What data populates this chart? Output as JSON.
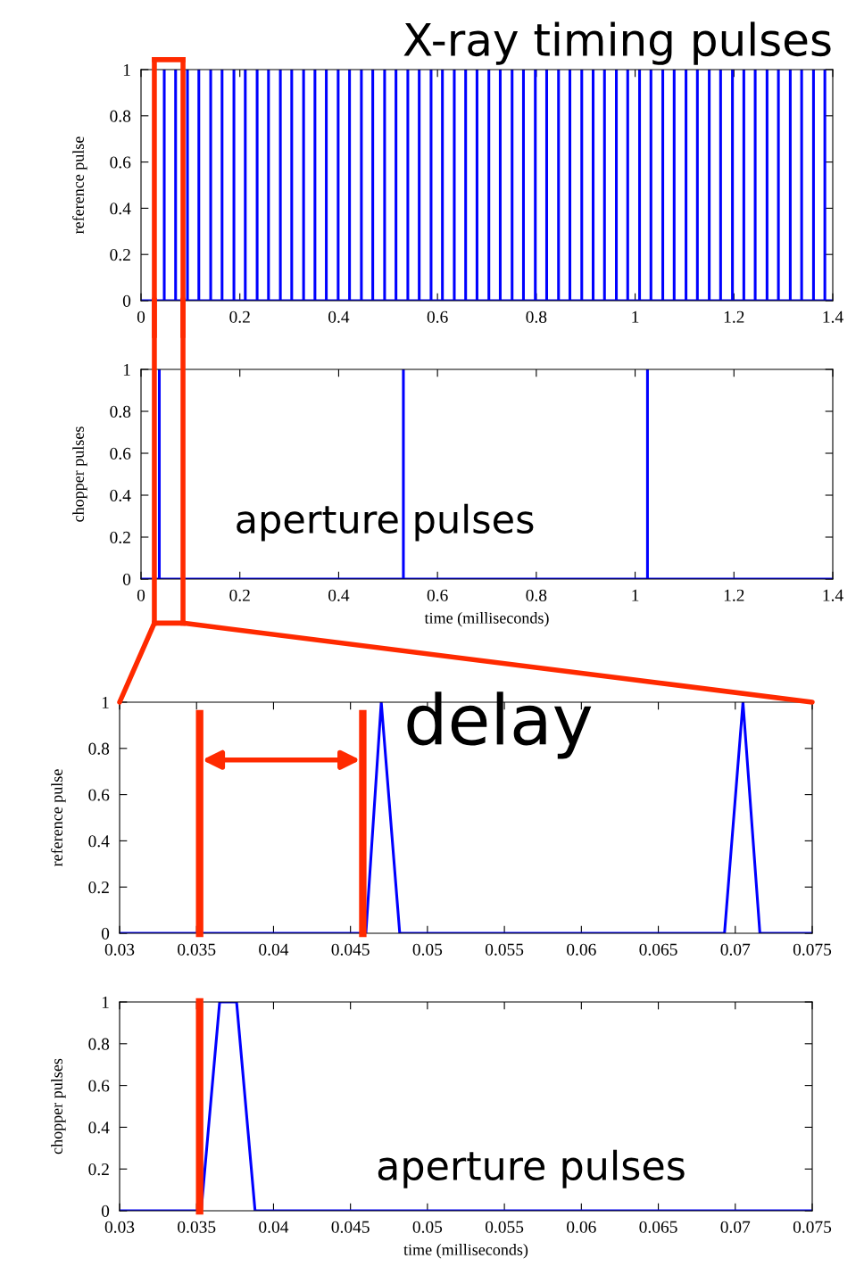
{
  "chart_data": [
    {
      "type": "line",
      "title": "X-ray timing pulses",
      "ylabel": "reference pulse",
      "ref_lines": [
        {
          "axis": "x",
          "value": 0.027,
          "color": "#ff2a00"
        },
        {
          "axis": "x",
          "value": 0.085,
          "color": "#ff2a00"
        }
      ],
      "xlim": [
        0,
        1.4
      ],
      "xticks": [
        0,
        0.2,
        0.4,
        0.6,
        0.8,
        1,
        1.2,
        1.4
      ],
      "ylim": [
        0,
        1
      ],
      "yticks": [
        0,
        0.2,
        0.4,
        0.6,
        0.8,
        1
      ],
      "series": [
        {
          "color": "#0000ff",
          "x": [
            0,
            0.047,
            0.047,
            0.047,
            0.07,
            0.07,
            0.07,
            0.094,
            0.094,
            0.094,
            0.117,
            0.117,
            0.117,
            0.141,
            0.141,
            0.141,
            0.164,
            0.164,
            0.164,
            0.188,
            0.188,
            0.188,
            0.211,
            0.211,
            0.211,
            0.235,
            0.235,
            0.235,
            0.258,
            0.258,
            0.258,
            0.282,
            0.282,
            0.282,
            0.305,
            0.305,
            0.305,
            0.329,
            0.329,
            0.329,
            0.352,
            0.352,
            0.352,
            0.375,
            0.375,
            0.375,
            0.399,
            0.399,
            0.399,
            0.422,
            0.422,
            0.422,
            0.446,
            0.446,
            0.446,
            0.469,
            0.469,
            0.469,
            0.493,
            0.493,
            0.493,
            0.516,
            0.516,
            0.516,
            0.54,
            0.54,
            0.54,
            0.563,
            0.563,
            0.563,
            0.587,
            0.587,
            0.587,
            0.61,
            0.61,
            0.61,
            0.634,
            0.634,
            0.634,
            0.657,
            0.657,
            0.657,
            0.68,
            0.68,
            0.68,
            0.704,
            0.704,
            0.704,
            0.727,
            0.727,
            0.727,
            0.751,
            0.751,
            0.751,
            0.774,
            0.774,
            0.774,
            0.798,
            0.798,
            0.798,
            0.821,
            0.821,
            0.821,
            0.845,
            0.845,
            0.845,
            0.868,
            0.868,
            0.868,
            0.892,
            0.892,
            0.892,
            0.915,
            0.915,
            0.915,
            0.938,
            0.938,
            0.938,
            0.962,
            0.962,
            0.962,
            0.985,
            0.985,
            0.985,
            1.009,
            1.009,
            1.009,
            1.032,
            1.032,
            1.032,
            1.056,
            1.056,
            1.056,
            1.079,
            1.079,
            1.079,
            1.103,
            1.103,
            1.103,
            1.126,
            1.126,
            1.126,
            1.15,
            1.15,
            1.15,
            1.173,
            1.173,
            1.173,
            1.197,
            1.197,
            1.197,
            1.22,
            1.22,
            1.22,
            1.243,
            1.243,
            1.243,
            1.267,
            1.267,
            1.267,
            1.29,
            1.29,
            1.29,
            1.314,
            1.314,
            1.314,
            1.337,
            1.337,
            1.337,
            1.361,
            1.361,
            1.361,
            1.384,
            1.384,
            1.384,
            1.4
          ],
          "values": [
            0,
            0,
            1,
            0,
            0,
            1,
            0,
            0,
            1,
            0,
            0,
            1,
            0,
            0,
            1,
            0,
            0,
            1,
            0,
            0,
            1,
            0,
            0,
            1,
            0,
            0,
            1,
            0,
            0,
            1,
            0,
            0,
            1,
            0,
            0,
            1,
            0,
            0,
            1,
            0,
            0,
            1,
            0,
            0,
            1,
            0,
            0,
            1,
            0,
            0,
            1,
            0,
            0,
            1,
            0,
            0,
            1,
            0,
            0,
            1,
            0,
            0,
            1,
            0,
            0,
            1,
            0,
            0,
            1,
            0,
            0,
            1,
            0,
            0,
            1,
            0,
            0,
            1,
            0,
            0,
            1,
            0,
            0,
            1,
            0,
            0,
            1,
            0,
            0,
            1,
            0,
            0,
            1,
            0,
            0,
            1,
            0,
            0,
            1,
            0,
            0,
            1,
            0,
            0,
            1,
            0,
            0,
            1,
            0,
            0,
            1,
            0,
            0,
            1,
            0,
            0,
            1,
            0,
            0,
            1,
            0,
            0,
            1,
            0,
            0,
            1,
            0,
            0,
            1,
            0,
            0,
            1,
            0,
            0,
            1,
            0,
            0,
            1,
            0,
            0,
            1,
            0,
            0,
            1,
            0,
            0,
            1,
            0,
            0,
            1,
            0,
            0,
            1,
            0,
            0,
            1,
            0,
            0,
            1,
            0,
            0,
            1,
            0,
            0,
            1,
            0,
            0,
            1,
            0,
            0,
            1,
            0,
            0,
            1,
            0,
            0
          ]
        }
      ]
    },
    {
      "type": "line",
      "ylabel": "chopper pulses",
      "xlabel": "time (milliseconds)",
      "annotations": [
        "aperture pulses"
      ],
      "ref_lines": [
        {
          "axis": "x",
          "value": 0.027,
          "color": "#ff2a00"
        },
        {
          "axis": "x",
          "value": 0.085,
          "color": "#ff2a00"
        }
      ],
      "xlim": [
        0,
        1.4
      ],
      "xticks": [
        0,
        0.2,
        0.4,
        0.6,
        0.8,
        1,
        1.2,
        1.4
      ],
      "ylim": [
        0,
        1
      ],
      "yticks": [
        0,
        0.2,
        0.4,
        0.6,
        0.8,
        1
      ],
      "series": [
        {
          "color": "#0000ff",
          "x": [
            0,
            0.037,
            0.037,
            0.037,
            0.531,
            0.531,
            0.531,
            1.025,
            1.025,
            1.025,
            1.4
          ],
          "values": [
            0,
            0,
            1,
            0,
            0,
            1,
            0,
            0,
            1,
            0,
            0
          ]
        }
      ]
    },
    {
      "type": "line",
      "ylabel": "reference pulse",
      "annotations": [
        "delay"
      ],
      "xlim": [
        0.03,
        0.075
      ],
      "xticks": [
        0.03,
        0.035,
        0.04,
        0.045,
        0.05,
        0.055,
        0.06,
        0.065,
        0.07,
        0.075
      ],
      "ylim": [
        0,
        1
      ],
      "yticks": [
        0,
        0.2,
        0.4,
        0.6,
        0.8,
        1
      ],
      "series": [
        {
          "color": "#0000ff",
          "x": [
            0.03,
            0.046,
            0.047,
            0.0482,
            0.0693,
            0.0705,
            0.0716,
            0.075
          ],
          "values": [
            0,
            0,
            1,
            0,
            0,
            1,
            0,
            0
          ]
        }
      ],
      "ref_lines": [
        {
          "axis": "x",
          "value": 0.0352,
          "color": "#ff2a00"
        },
        {
          "axis": "x",
          "value": 0.0458,
          "color": "#ff2a00"
        }
      ]
    },
    {
      "type": "line",
      "ylabel": "chopper pulses",
      "xlabel": "time (milliseconds)",
      "annotations": [
        "aperture pulses"
      ],
      "xlim": [
        0.03,
        0.075
      ],
      "xticks": [
        0.03,
        0.035,
        0.04,
        0.045,
        0.05,
        0.055,
        0.06,
        0.065,
        0.07,
        0.075
      ],
      "ylim": [
        0,
        1
      ],
      "yticks": [
        0,
        0.2,
        0.4,
        0.6,
        0.8,
        1
      ],
      "series": [
        {
          "color": "#0000ff",
          "x": [
            0.03,
            0.0353,
            0.0365,
            0.0376,
            0.0388,
            0.075
          ],
          "values": [
            0,
            0,
            1,
            1,
            0,
            0
          ]
        }
      ],
      "ref_lines": [
        {
          "axis": "x",
          "value": 0.0352,
          "color": "#ff2a00"
        }
      ]
    }
  ]
}
